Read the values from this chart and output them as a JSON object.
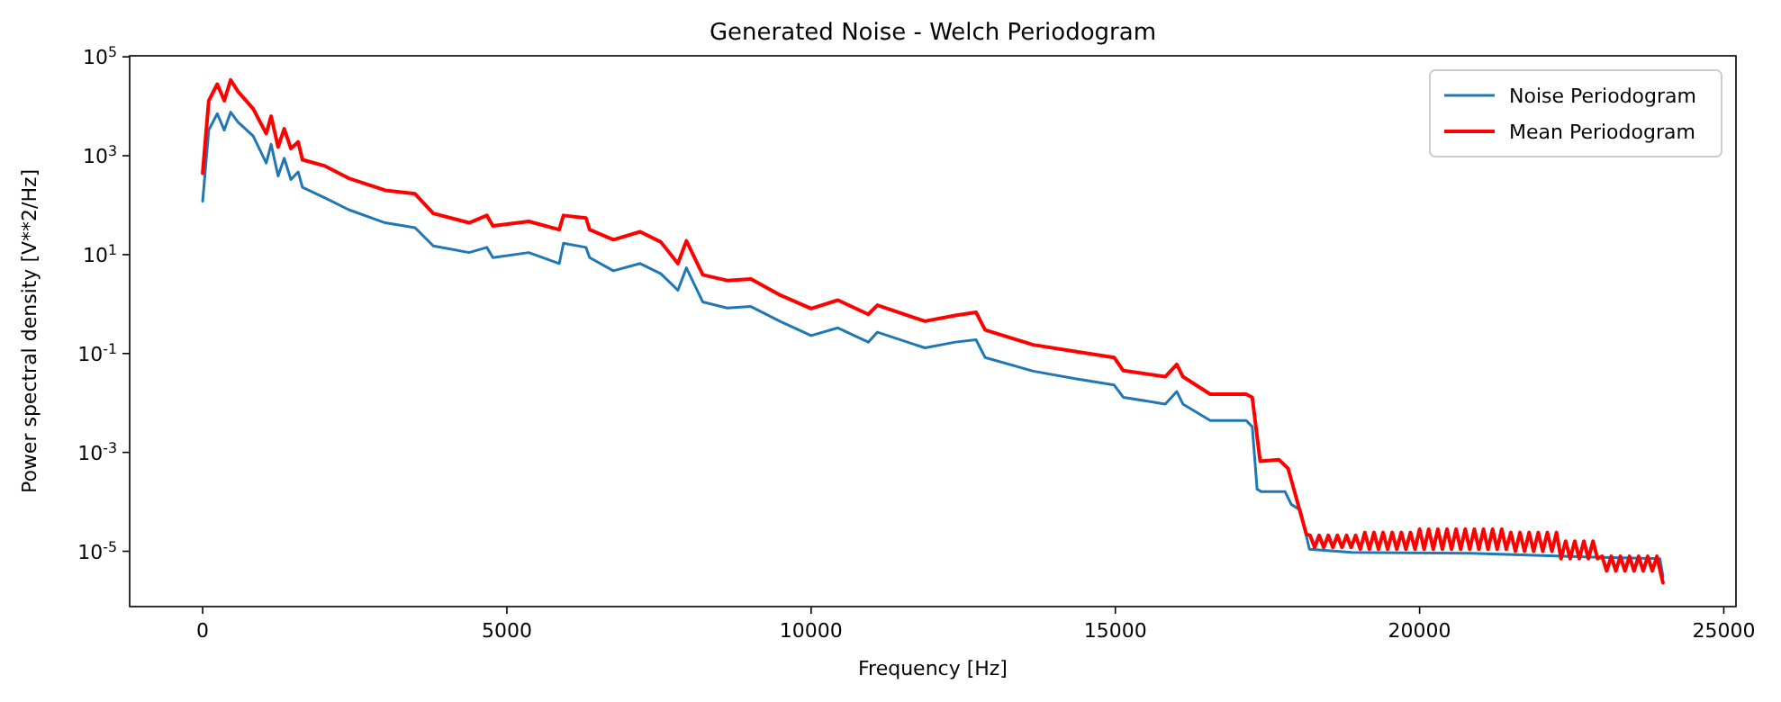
{
  "chart_data": {
    "type": "line",
    "title": "Generated Noise - Welch Periodogram",
    "xlabel": "Frequency [Hz]",
    "ylabel": "Power spectral density [V**2/Hz]",
    "log": "y",
    "grid": false,
    "legend": "top right",
    "line_style": "solid",
    "marker": "none",
    "xlim": [
      -1200,
      25200
    ],
    "xticks": [
      0,
      5000,
      10000,
      15000,
      20000,
      25000
    ],
    "ylim": [
      7.6e-07,
      105000
    ],
    "yticks": [
      {
        "value": 100000,
        "label": "10$^{5}$"
      },
      {
        "value": 1000,
        "label": "10$^{3}$"
      },
      {
        "value": 10,
        "label": "10$^{1}$"
      },
      {
        "value": 0.1,
        "label": "10$^{-1}$"
      },
      {
        "value": 0.001,
        "label": "10$^{-3}$"
      },
      {
        "value": 1e-05,
        "label": "10$^{-5}$"
      }
    ],
    "series": [
      {
        "name": "Noise Periodogram",
        "color": "#1f77b4",
        "x": [
          0,
          100,
          240,
          355,
          460,
          580,
          830,
          1045,
          1125,
          1240,
          1340,
          1450,
          1570,
          1640,
          2010,
          2400,
          3000,
          3490,
          3790,
          4380,
          4670,
          4770,
          5360,
          5860,
          5930,
          6300,
          6360,
          6750,
          7190,
          7530,
          7810,
          7950,
          8220,
          8620,
          9010,
          9500,
          10000,
          10440,
          10940,
          11090,
          11870,
          12370,
          12710,
          12860,
          13650,
          14340,
          14980,
          15130,
          15820,
          16010,
          16110,
          16560,
          17150,
          17250,
          17330,
          17400,
          17790,
          17890,
          18040,
          18190,
          18880,
          20850,
          22820,
          23950,
          24000
        ],
        "values": [
          120,
          3300,
          7100,
          3300,
          7600,
          4800,
          2500,
          710,
          1700,
          390,
          890,
          330,
          470,
          230,
          140,
          81,
          44,
          35,
          15,
          11,
          14,
          8.7,
          11,
          6.6,
          17,
          14,
          8.7,
          4.7,
          6.6,
          4.1,
          1.9,
          5.4,
          1.1,
          0.83,
          0.89,
          0.44,
          0.23,
          0.33,
          0.17,
          0.27,
          0.13,
          0.17,
          0.19,
          0.083,
          0.044,
          0.031,
          0.023,
          0.013,
          0.0095,
          0.017,
          0.0095,
          0.0044,
          0.0044,
          0.0033,
          0.00018,
          0.00016,
          0.00016,
          8.9e-05,
          6.8e-05,
          1.1e-05,
          9.5e-06,
          9.1e-06,
          7.6e-06,
          7.1e-06,
          3.1e-06
        ]
      },
      {
        "name": "Mean Periodogram",
        "color": "#ff0000",
        "x": [
          0,
          100,
          240,
          355,
          460,
          580,
          830,
          1045,
          1125,
          1240,
          1340,
          1450,
          1570,
          1640,
          2010,
          2400,
          3000,
          3490,
          3790,
          4380,
          4670,
          4770,
          5360,
          5860,
          5930,
          6300,
          6360,
          6750,
          7190,
          7530,
          7810,
          7950,
          8220,
          8620,
          9010,
          9500,
          10000,
          10440,
          10940,
          11090,
          11870,
          12370,
          12710,
          12860,
          13650,
          14340,
          14980,
          15130,
          15820,
          16010,
          16110,
          16560,
          17150,
          17250,
          17380,
          17690,
          17840,
          18140,
          18200,
          18275,
          18350,
          18425,
          18500,
          18575,
          18650,
          18725,
          18800,
          18875,
          18950,
          19025,
          19100,
          19175,
          19250,
          19325,
          19400,
          19475,
          19550,
          19625,
          19700,
          19775,
          19850,
          19925,
          20000,
          20075,
          20150,
          20225,
          20300,
          20375,
          20450,
          20525,
          20600,
          20675,
          20750,
          20825,
          20900,
          20975,
          21050,
          21125,
          21200,
          21275,
          21350,
          21425,
          21500,
          21575,
          21650,
          21725,
          21800,
          21875,
          21950,
          22025,
          22100,
          22175,
          22250,
          22325,
          22400,
          22475,
          22550,
          22625,
          22700,
          22775,
          22850,
          22925,
          23000,
          23075,
          23150,
          23225,
          23300,
          23375,
          23450,
          23525,
          23600,
          23675,
          23750,
          23825,
          23900,
          24000
        ],
        "values": [
          440,
          13000,
          28000,
          13000,
          34000,
          20000,
          8900,
          2800,
          6300,
          1500,
          3500,
          1400,
          1900,
          830,
          620,
          350,
          200,
          170,
          68,
          44,
          62,
          38,
          47,
          32,
          62,
          55,
          32,
          20,
          29,
          18,
          6.6,
          19,
          3.9,
          3.0,
          3.2,
          1.5,
          0.81,
          1.2,
          0.62,
          0.95,
          0.45,
          0.59,
          0.68,
          0.3,
          0.15,
          0.11,
          0.083,
          0.045,
          0.034,
          0.06,
          0.034,
          0.015,
          0.015,
          0.013,
          0.00066,
          0.00071,
          0.00047,
          2.2e-05,
          2.1e-05,
          1.2e-05,
          2.1e-05,
          1.2e-05,
          2.1e-05,
          1.2e-05,
          2.1e-05,
          1.2e-05,
          2.1e-05,
          1.2e-05,
          2.1e-05,
          1.1e-05,
          2.4e-05,
          1.1e-05,
          2.4e-05,
          1.1e-05,
          2.4e-05,
          1.1e-05,
          2.4e-05,
          1.1e-05,
          2.4e-05,
          1.1e-05,
          2.4e-05,
          1.1e-05,
          2.8e-05,
          1.1e-05,
          2.8e-05,
          1.1e-05,
          2.8e-05,
          1.1e-05,
          2.8e-05,
          1.1e-05,
          2.8e-05,
          1.1e-05,
          2.8e-05,
          1.1e-05,
          2.8e-05,
          1.1e-05,
          2.8e-05,
          1.1e-05,
          2.8e-05,
          1.1e-05,
          2.8e-05,
          1.1e-05,
          2.4e-05,
          1e-05,
          2.4e-05,
          1e-05,
          2.4e-05,
          1e-05,
          2.4e-05,
          1e-05,
          2.4e-05,
          1e-05,
          2.4e-05,
          7.1e-06,
          1.6e-05,
          7.1e-06,
          1.6e-05,
          7.1e-06,
          1.6e-05,
          7.1e-06,
          1.6e-05,
          7.1e-06,
          7.9e-06,
          4e-06,
          7.9e-06,
          4e-06,
          7.9e-06,
          4e-06,
          7.9e-06,
          4e-06,
          7.9e-06,
          4e-06,
          7.9e-06,
          4e-06,
          7.9e-06,
          2.3e-06
        ]
      }
    ]
  }
}
